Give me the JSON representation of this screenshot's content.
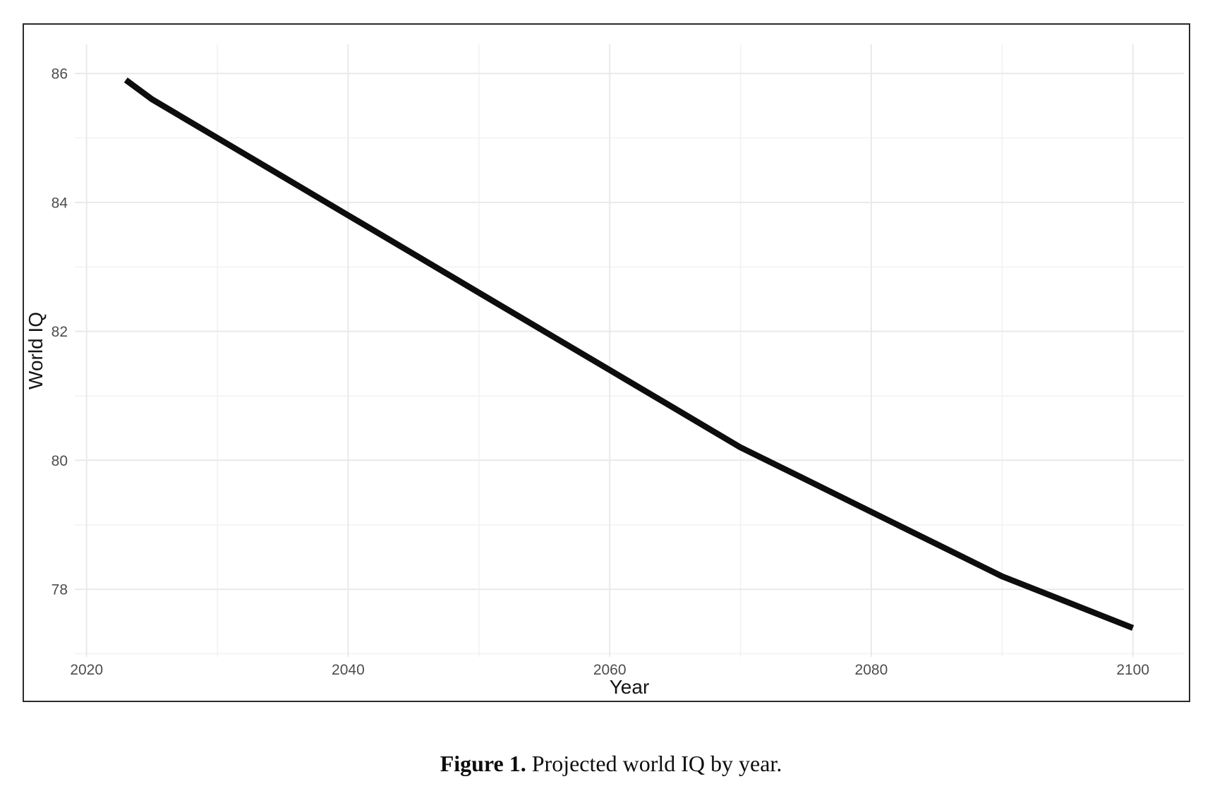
{
  "figure": {
    "caption": {
      "label": "Figure 1.",
      "text": " Projected world IQ by year."
    }
  },
  "chart_data": {
    "type": "line",
    "title": "",
    "xlabel": "Year",
    "ylabel": "World IQ",
    "xlim": [
      2019.1,
      2103.9
    ],
    "ylim": [
      76.95,
      86.45
    ],
    "x_ticks": [
      2020,
      2040,
      2060,
      2080,
      2100
    ],
    "x_minor_ticks": [
      2030,
      2050,
      2070,
      2090
    ],
    "y_ticks": [
      78,
      80,
      82,
      84,
      86
    ],
    "y_minor_ticks": [
      77,
      79,
      81,
      83,
      85
    ],
    "grid": "major-and-minor",
    "legend": false,
    "series": [
      {
        "name": "Projected world IQ",
        "x": [
          2023,
          2025,
          2030,
          2035,
          2040,
          2045,
          2050,
          2055,
          2060,
          2065,
          2070,
          2075,
          2080,
          2085,
          2090,
          2095,
          2100
        ],
        "y": [
          85.9,
          85.6,
          85.0,
          84.4,
          83.8,
          83.2,
          82.6,
          82.0,
          81.4,
          80.8,
          80.2,
          79.7,
          79.2,
          78.7,
          78.2,
          77.8,
          77.4
        ]
      }
    ],
    "colors": {
      "line": "#0d0d0d",
      "grid_major": "#e9e9e9",
      "grid_minor": "#f2f2f2",
      "tick_label": "#4d4d4d",
      "axis_title": "#141414",
      "border": "#2b2b2b",
      "background": "#ffffff"
    }
  }
}
